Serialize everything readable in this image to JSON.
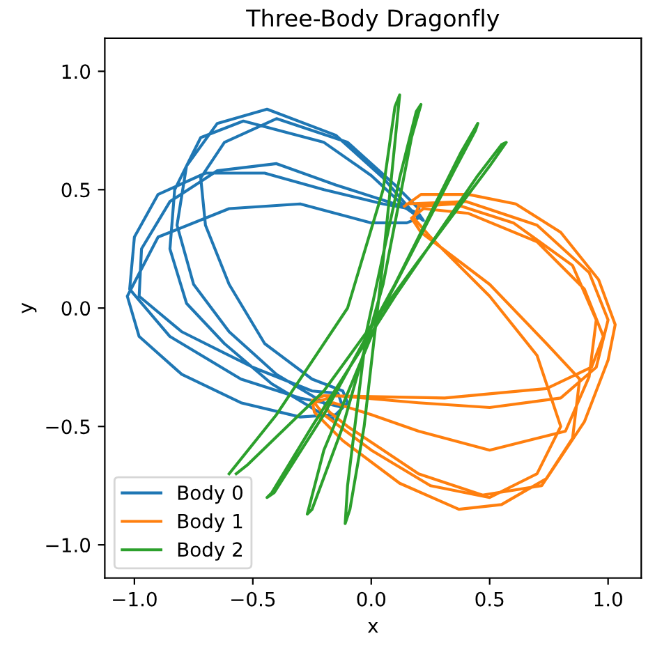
{
  "chart_data": {
    "type": "line",
    "title": "Three-Body Dragonfly",
    "xlabel": "x",
    "ylabel": "y",
    "xlim": [
      -1.125,
      1.14
    ],
    "ylim": [
      -1.14,
      1.14
    ],
    "xticks": [
      {
        "value": -1.0,
        "label": "−1.0"
      },
      {
        "value": -0.5,
        "label": "−0.5"
      },
      {
        "value": 0,
        "label": "0.0"
      },
      0.5,
      {
        "value": 1,
        "label": "1.0"
      }
    ],
    "yticks": [
      {
        "value": -1.0,
        "label": "−1.0"
      },
      {
        "value": -0.5,
        "label": "−0.5"
      },
      {
        "value": 0,
        "label": "0.0"
      },
      0.5,
      {
        "value": 1,
        "label": "1.0"
      }
    ],
    "grid": false,
    "legend": "bottom left",
    "marker": "none",
    "line_style": "solid",
    "series": [
      {
        "name": "Body 0",
        "color": "#1f77b4",
        "x": [
          0.18,
          0.05,
          -0.15,
          -0.44,
          -0.65,
          -0.78,
          -0.82,
          -0.75,
          -0.6,
          -0.4,
          -0.2,
          -0.12,
          -0.14,
          -0.25,
          -0.5,
          -0.8,
          -0.98,
          -0.97,
          -0.85,
          -0.65,
          -0.4,
          -0.15,
          0.1,
          0.2,
          0.22,
          0.15,
          0.0,
          -0.2,
          -0.54,
          -0.72,
          -0.83,
          -0.85,
          -0.78,
          -0.62,
          -0.42,
          -0.22,
          -0.16,
          -0.2,
          -0.3,
          -0.55,
          -0.85,
          -1.02,
          -1.0,
          -0.9,
          -0.7,
          -0.45,
          -0.2,
          0.05,
          0.16,
          0.2,
          0.15,
          0.0,
          -0.3,
          -0.6,
          -0.9,
          -1.03,
          -0.98,
          -0.8,
          -0.55,
          -0.3,
          -0.15,
          -0.1,
          -0.12,
          -0.25,
          -0.45,
          -0.6,
          -0.7,
          -0.72,
          -0.62,
          -0.4,
          -0.1,
          0.1,
          0.2
        ],
        "values": [
          0.4,
          0.55,
          0.73,
          0.84,
          0.78,
          0.6,
          0.35,
          0.1,
          -0.1,
          -0.28,
          -0.4,
          -0.42,
          -0.36,
          -0.35,
          -0.25,
          -0.1,
          0.05,
          0.25,
          0.45,
          0.58,
          0.61,
          0.52,
          0.44,
          0.4,
          0.37,
          0.42,
          0.56,
          0.7,
          0.79,
          0.72,
          0.5,
          0.25,
          0.02,
          -0.15,
          -0.32,
          -0.44,
          -0.47,
          -0.4,
          -0.38,
          -0.3,
          -0.12,
          0.08,
          0.3,
          0.48,
          0.57,
          0.57,
          0.5,
          0.44,
          0.42,
          0.38,
          0.36,
          0.36,
          0.44,
          0.42,
          0.3,
          0.05,
          -0.12,
          -0.28,
          -0.4,
          -0.46,
          -0.45,
          -0.4,
          -0.35,
          -0.3,
          -0.15,
          0.1,
          0.35,
          0.55,
          0.7,
          0.8,
          0.7,
          0.52,
          0.42
        ]
      },
      {
        "name": "Body 1",
        "color": "#ff7f0e",
        "x": [
          0.14,
          0.21,
          0.41,
          0.61,
          0.8,
          0.96,
          1.03,
          1.0,
          0.9,
          0.74,
          0.55,
          0.37,
          0.12,
          -0.12,
          -0.24,
          -0.25,
          -0.2,
          0.31,
          0.74,
          0.93,
          0.98,
          0.9,
          0.7,
          0.41,
          0.22,
          0.17,
          0.21,
          0.5,
          0.74,
          0.88,
          0.85,
          0.72,
          0.47,
          0.2,
          -0.1,
          -0.2,
          -0.16,
          0.0,
          0.2,
          0.5,
          0.82,
          0.92,
          0.95,
          0.85,
          0.6,
          0.35,
          0.2,
          0.18,
          0.25,
          0.5,
          0.7,
          0.8,
          0.7,
          0.5,
          0.25,
          0.0,
          -0.2,
          -0.24,
          -0.15,
          0.2,
          0.5,
          0.8,
          0.95,
          1.0,
          0.92,
          0.7,
          0.4,
          0.15
        ],
        "values": [
          0.43,
          0.48,
          0.48,
          0.44,
          0.32,
          0.12,
          -0.07,
          -0.22,
          -0.48,
          -0.72,
          -0.83,
          -0.85,
          -0.74,
          -0.56,
          -0.44,
          -0.39,
          -0.37,
          -0.38,
          -0.34,
          -0.25,
          -0.12,
          0.08,
          0.28,
          0.4,
          0.42,
          0.38,
          0.32,
          0.1,
          -0.15,
          -0.3,
          -0.55,
          -0.75,
          -0.79,
          -0.7,
          -0.5,
          -0.42,
          -0.4,
          -0.45,
          -0.52,
          -0.6,
          -0.52,
          -0.29,
          -0.05,
          0.18,
          0.36,
          0.44,
          0.43,
          0.38,
          0.3,
          0.05,
          -0.2,
          -0.5,
          -0.7,
          -0.8,
          -0.75,
          -0.6,
          -0.45,
          -0.4,
          -0.37,
          -0.4,
          -0.42,
          -0.38,
          -0.25,
          -0.05,
          0.15,
          0.35,
          0.45,
          0.44
        ]
      },
      {
        "name": "Body 2",
        "color": "#2ca02c",
        "x": [
          -0.57,
          -0.52,
          -0.2,
          0.2,
          0.5,
          0.57,
          0.55,
          0.45,
          0.1,
          -0.25,
          -0.42,
          -0.44,
          -0.41,
          -0.2,
          0.1,
          0.38,
          0.45,
          0.44,
          0.35,
          0.05,
          -0.2,
          -0.27,
          -0.25,
          -0.12,
          0.05,
          0.17,
          0.21,
          0.19,
          0.12,
          -0.02,
          -0.1,
          -0.11,
          -0.09,
          -0.03,
          0.05,
          0.12,
          0.1,
          0.05,
          -0.1,
          -0.4,
          -0.6
        ],
        "values": [
          -0.7,
          -0.66,
          -0.35,
          0.2,
          0.6,
          0.7,
          0.69,
          0.56,
          0.05,
          -0.5,
          -0.78,
          -0.8,
          -0.78,
          -0.45,
          0.1,
          0.66,
          0.78,
          0.75,
          0.58,
          0.0,
          -0.6,
          -0.87,
          -0.85,
          -0.5,
          0.1,
          0.72,
          0.86,
          0.83,
          0.55,
          -0.1,
          -0.75,
          -0.91,
          -0.85,
          -0.5,
          0.2,
          0.9,
          0.85,
          0.5,
          0.0,
          -0.45,
          -0.7
        ]
      }
    ]
  }
}
